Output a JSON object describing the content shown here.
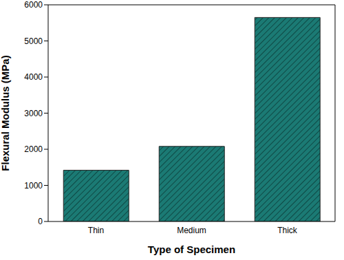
{
  "chart_data": {
    "type": "bar",
    "categories": [
      "Thin",
      "Medium",
      "Thick"
    ],
    "values": [
      1420,
      2080,
      5650
    ],
    "color": "#1b7a74",
    "x_label": "Type of Specimen",
    "y_label": "Flexural Modulus (MPa)",
    "ylim": [
      0,
      6000
    ],
    "yticks": [
      0,
      1000,
      2000,
      3000,
      4000,
      5000,
      6000
    ],
    "grid": false
  }
}
